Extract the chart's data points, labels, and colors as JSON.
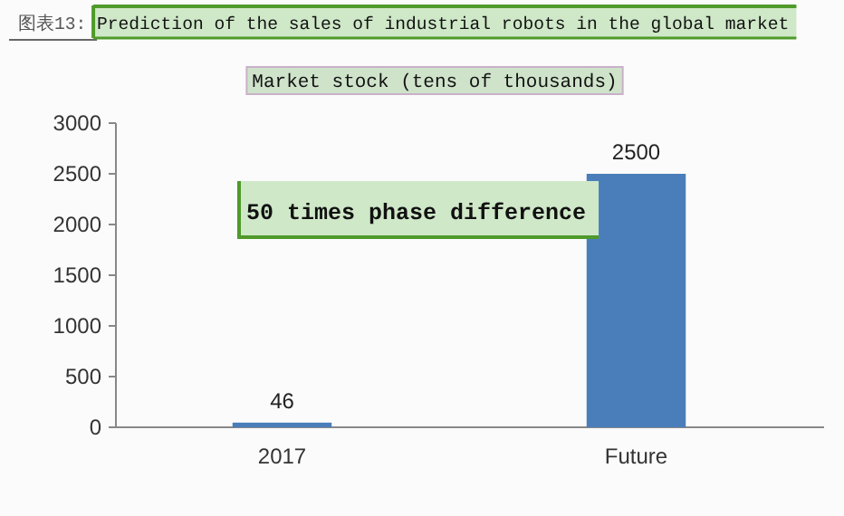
{
  "chart_data": {
    "type": "bar",
    "title": "图表13: Prediction of the sales of industrial robots in the global market",
    "subtitle": "Market stock (tens of thousands)",
    "categories": [
      "2017",
      "Future"
    ],
    "values": [
      46,
      2500
    ],
    "color": "#4a7ebb",
    "ylim": [
      0,
      3000
    ],
    "yticks": [
      0,
      500,
      1000,
      1500,
      2000,
      2500,
      3000
    ],
    "data_labels": true,
    "annotations": [
      "50 times phase difference"
    ]
  }
}
